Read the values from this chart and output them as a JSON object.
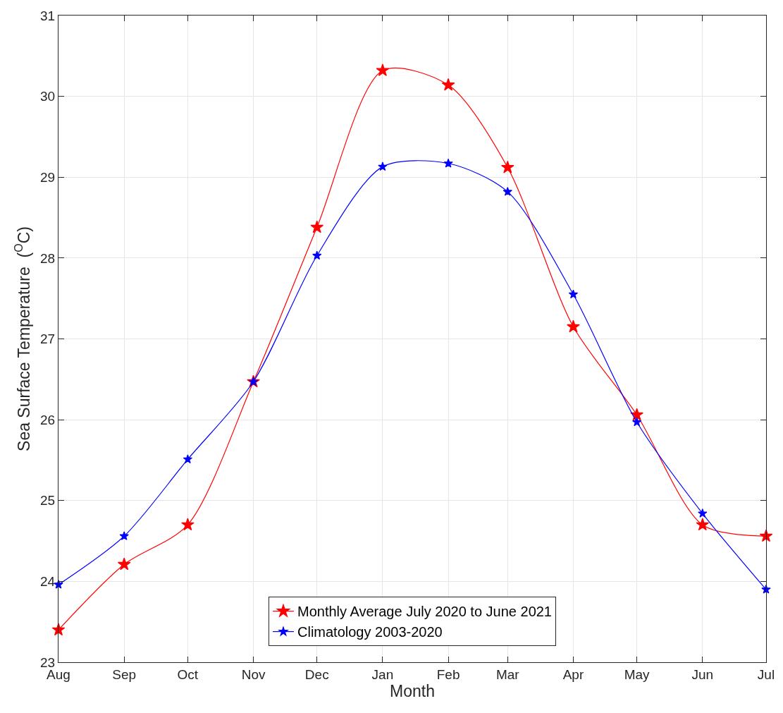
{
  "chart_data": {
    "type": "line",
    "xlabel": "Month",
    "ylabel": "Sea Surface Temperature  ($^{O}$C)",
    "x": [
      "2020-08",
      "2020-09",
      "2020-10",
      "2020-11",
      "2020-12",
      "2021-01",
      "2021-02",
      "2021-03",
      "2021-04",
      "2021-05",
      "2021-06",
      "2021-07"
    ],
    "xlim": [
      "2020-08",
      "2021-07"
    ],
    "xticks": [
      {
        "value": "2020-08",
        "label": "Aug"
      },
      {
        "value": "2020-09",
        "label": "Sep"
      },
      {
        "value": "2020-10",
        "label": "Oct"
      },
      {
        "value": "2020-11",
        "label": "Nov"
      },
      {
        "value": "2020-12",
        "label": "Dec"
      },
      {
        "value": "2021-01",
        "label": "Jan"
      },
      {
        "value": "2021-02",
        "label": "Feb"
      },
      {
        "value": "2021-03",
        "label": "Mar"
      },
      {
        "value": "2021-04",
        "label": "Apr"
      },
      {
        "value": "2021-05",
        "label": "May"
      },
      {
        "value": "2021-06",
        "label": "Jun"
      },
      {
        "value": "2021-07",
        "label": "Jul"
      }
    ],
    "ylim": [
      23,
      31
    ],
    "yticks": [
      23,
      24,
      25,
      26,
      27,
      28,
      29,
      30,
      31
    ],
    "series": [
      {
        "name": "Monthly Average July 2020 to June 2021",
        "color": "#ff0000",
        "values": [
          23.4,
          24.21,
          24.7,
          26.47,
          28.38,
          30.32,
          30.14,
          29.12,
          27.15,
          26.06,
          24.7,
          24.56
        ]
      },
      {
        "name": "Climatology 2003-2020",
        "color": "#0000ff",
        "values": [
          23.96,
          24.56,
          25.51,
          26.47,
          28.03,
          29.13,
          29.17,
          28.82,
          27.55,
          25.97,
          24.84,
          23.9
        ]
      }
    ],
    "grid": true,
    "legend": "bottom",
    "marker": "star",
    "line_style": "solid"
  }
}
